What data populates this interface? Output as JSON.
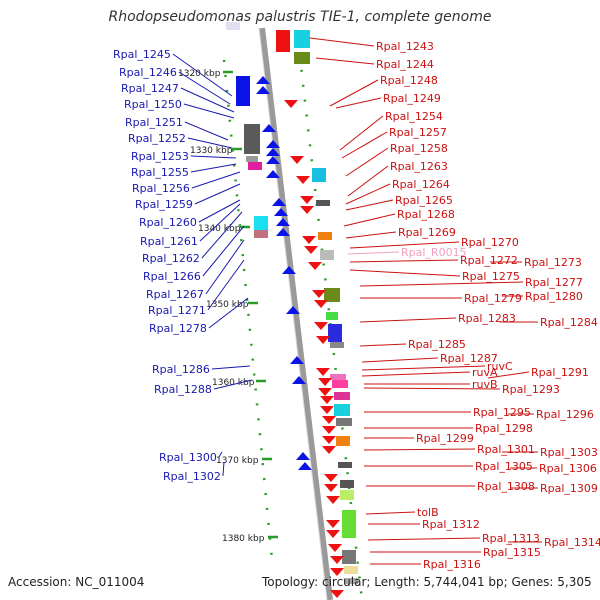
{
  "title": "Rhodopseudomonas palustris TIE-1, complete genome",
  "footer": {
    "accession": "Accession: NC_011004",
    "topology": "Topology: circular; Length: 5,744,041 bp; Genes: 5,305"
  },
  "colors": {
    "left_label": "#1a1ab0",
    "right_label": "#cc1111",
    "rna_label": "#f0a0c0",
    "reverse_gene": "#0a14e6",
    "forward_gene": "#ee1111",
    "backbone": "#9a9a9a"
  },
  "ticks": [
    "1320 kbp",
    "1330 kbp",
    "1340 kbp",
    "1350 kbp",
    "1360 kbp",
    "1370 kbp",
    "1380 kbp"
  ],
  "left_labels": [
    "Rpal_1245",
    "Rpal_1246",
    "Rpal_1247",
    "Rpal_1250",
    "Rpal_1251",
    "Rpal_1252",
    "Rpal_1253",
    "Rpal_1255",
    "Rpal_1256",
    "Rpal_1259",
    "Rpal_1260",
    "Rpal_1261",
    "Rpal_1262",
    "Rpal_1266",
    "Rpal_1267",
    "Rpal_1271",
    "Rpal_1278",
    "Rpal_1286",
    "Rpal_1288",
    "Rpal_1300",
    "Rpal_1302"
  ],
  "right_labels": [
    "Rpal_1243",
    "Rpal_1244",
    "Rpal_1248",
    "Rpal_1249",
    "Rpal_1254",
    "Rpal_1257",
    "Rpal_1258",
    "Rpal_1263",
    "Rpal_1264",
    "Rpal_1265",
    "Rpal_1268",
    "Rpal_1269",
    "Rpal_1270",
    "Rpal_R0015",
    "Rpal_1272",
    "Rpal_1273",
    "Rpal_1275",
    "Rpal_1277",
    "Rpal_1279",
    "Rpal_1280",
    "Rpal_1283",
    "Rpal_1284",
    "Rpal_1285",
    "Rpal_1287",
    "ruvC",
    "ruvA",
    "Rpal_1291",
    "ruvB",
    "Rpal_1293",
    "Rpal_1295",
    "Rpal_1296",
    "Rpal_1298",
    "Rpal_1299",
    "Rpal_1301",
    "Rpal_1303",
    "Rpal_1305",
    "Rpal_1306",
    "Rpal_1308",
    "Rpal_1309",
    "tolB",
    "Rpal_1312",
    "Rpal_1313",
    "Rpal_1314",
    "Rpal_1315",
    "Rpal_1316"
  ]
}
